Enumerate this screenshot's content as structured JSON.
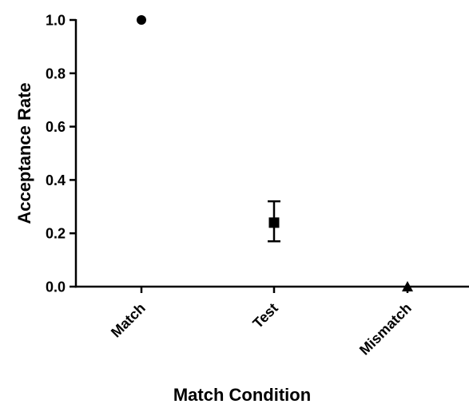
{
  "chart_data": {
    "type": "scatter",
    "title": "",
    "xlabel": "Match Condition",
    "ylabel": "Acceptance Rate",
    "categories": [
      "Match",
      "Test",
      "Mismatch"
    ],
    "ylim": [
      0.0,
      1.0
    ],
    "yticks": [
      "0.0",
      "0.2",
      "0.4",
      "0.6",
      "0.8",
      "1.0"
    ],
    "grid": false,
    "legend": "none",
    "points": [
      {
        "category": "Match",
        "value": 1.0,
        "marker": "circle"
      },
      {
        "category": "Test",
        "value": 0.24,
        "error_low": 0.17,
        "error_high": 0.32,
        "marker": "square"
      },
      {
        "category": "Mismatch",
        "value": 0.0,
        "marker": "triangle"
      }
    ],
    "colors": {
      "marker": "#000000",
      "axis": "#000000"
    }
  }
}
